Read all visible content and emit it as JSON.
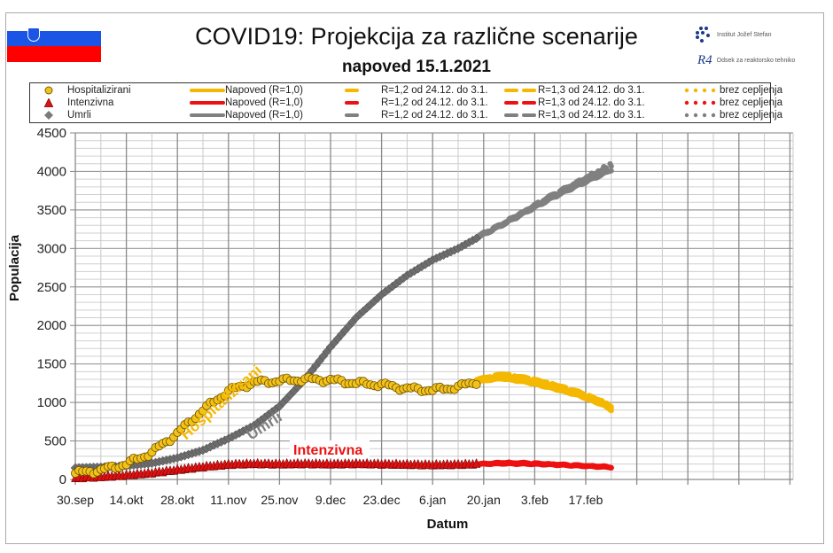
{
  "header": {
    "title": "COVID19: Projekcija za različne scenarije",
    "subtitle": "napoved 15.1.2021",
    "logo_ijs": "Institut Jožef Stefan",
    "logo_r4_mark": "R4",
    "logo_r4": "Odsek za reaktorsko tehniko"
  },
  "colors": {
    "hospitalizirani": "#f5b800",
    "hosp_marker": "#f3c21a",
    "intenzivna": "#ee1111",
    "umrli": "#808080",
    "umrli_marker": "#6d6d6d",
    "flag_blue": "#1a55e6",
    "flag_red": "#ff0000"
  },
  "legend": {
    "rows": [
      {
        "series": "Hospitalizirani",
        "marker": "circle",
        "color": "#f5b800",
        "napoved": "Napoved (R=1,0)",
        "r12": "R=1,2 od 24.12. do 3.1.",
        "r13": "R=1,3 od 24.12. do 3.1.",
        "brez": "brez cepljenja"
      },
      {
        "series": "Intenzivna",
        "marker": "triangle",
        "color": "#ee1111",
        "napoved": "Napoved (R=1,0)",
        "r12": "R=1,2 od 24.12. do 3.1.",
        "r13": "R=1,3 od 24.12. do 3.1.",
        "brez": "brez cepljenja"
      },
      {
        "series": "Umrli",
        "marker": "diamond",
        "color": "#808080",
        "napoved": "Napoved (R=1,0)",
        "r12": "R=1,2 od 24.12. do 3.1.",
        "r13": "R=1,3 od 24.12. do 3.1.",
        "brez": "brez cepljenja"
      }
    ]
  },
  "chart_data": {
    "type": "line",
    "title": "COVID19: Projekcija za različne scenarije",
    "subtitle": "napoved 15.1.2021",
    "xlabel": "Datum",
    "ylabel": "Populacija",
    "ylim": [
      0,
      4500
    ],
    "yticks": [
      0,
      500,
      1000,
      1500,
      2000,
      2500,
      3000,
      3500,
      4000,
      4500
    ],
    "xticks": [
      "30.sep",
      "14.okt",
      "28.okt",
      "11.nov",
      "25.nov",
      "9.dec",
      "23.dec",
      "6.jan",
      "20.jan",
      "3.feb",
      "17.feb"
    ],
    "grid": true,
    "legend_position": "top",
    "annotations": [
      {
        "text": "Hospitalizirani",
        "color": "#f5b800"
      },
      {
        "text": "Umrli",
        "color": "#808080"
      },
      {
        "text": "Intenzivna",
        "color": "#ee1111"
      }
    ],
    "x_days_from_30sep": [
      0,
      7,
      14,
      21,
      28,
      35,
      42,
      49,
      56,
      63,
      70,
      77,
      84,
      91,
      98,
      105,
      110
    ],
    "series": [
      {
        "name": "Hospitalizirani (measured)",
        "marker": "circle",
        "values": [
          80,
          120,
          200,
          350,
          600,
          900,
          1150,
          1260,
          1280,
          1300,
          1290,
          1250,
          1230,
          1180,
          1160,
          1200,
          1270
        ]
      },
      {
        "name": "Intenzivna (measured)",
        "marker": "triangle",
        "values": [
          15,
          30,
          50,
          80,
          120,
          160,
          190,
          200,
          195,
          200,
          195,
          200,
          195,
          190,
          185,
          190,
          195
        ]
      },
      {
        "name": "Umrli (measured)",
        "marker": "diamond",
        "values": [
          150,
          160,
          175,
          210,
          280,
          380,
          530,
          700,
          950,
          1300,
          1720,
          2100,
          2400,
          2650,
          2850,
          3000,
          3130
        ]
      }
    ],
    "projection_x_days_from_30sep": [
      110,
      117,
      124,
      131,
      138,
      145,
      147
    ],
    "projections": [
      {
        "name": "Hospitalizirani Napoved (R=1,0)",
        "values": [
          1270,
          1310,
          1260,
          1180,
          1090,
          960,
          900
        ]
      },
      {
        "name": "Hospitalizirani R=1,2 od 24.12. do 3.1.",
        "values": [
          1290,
          1340,
          1290,
          1210,
          1110,
          990,
          920
        ]
      },
      {
        "name": "Hospitalizirani R=1,3 od 24.12. do 3.1.",
        "values": [
          1300,
          1370,
          1320,
          1240,
          1140,
          1010,
          950
        ]
      },
      {
        "name": "Hospitalizirani brez cepljenja",
        "values": [
          1270,
          1320,
          1280,
          1200,
          1110,
          990,
          930
        ]
      },
      {
        "name": "Intenzivna Napoved (R=1,0)",
        "values": [
          195,
          205,
          200,
          190,
          175,
          160,
          155
        ]
      },
      {
        "name": "Intenzivna R=1,2 od 24.12. do 3.1.",
        "values": [
          200,
          215,
          210,
          195,
          180,
          165,
          160
        ]
      },
      {
        "name": "Intenzivna R=1,3 od 24.12. do 3.1.",
        "values": [
          200,
          220,
          215,
          200,
          185,
          170,
          165
        ]
      },
      {
        "name": "Intenzivna brez cepljenja",
        "values": [
          195,
          210,
          205,
          195,
          180,
          165,
          160
        ]
      },
      {
        "name": "Umrli Napoved (R=1,0)",
        "values": [
          3130,
          3300,
          3480,
          3660,
          3820,
          3970,
          4020
        ]
      },
      {
        "name": "Umrli R=1,2 od 24.12. do 3.1.",
        "values": [
          3140,
          3310,
          3500,
          3680,
          3850,
          4000,
          4050
        ]
      },
      {
        "name": "Umrli R=1,3 od 24.12. do 3.1.",
        "values": [
          3150,
          3320,
          3510,
          3700,
          3870,
          4030,
          4080
        ]
      },
      {
        "name": "Umrli brez cepljenja",
        "values": [
          3140,
          3310,
          3500,
          3690,
          3880,
          4060,
          4120
        ]
      }
    ]
  }
}
